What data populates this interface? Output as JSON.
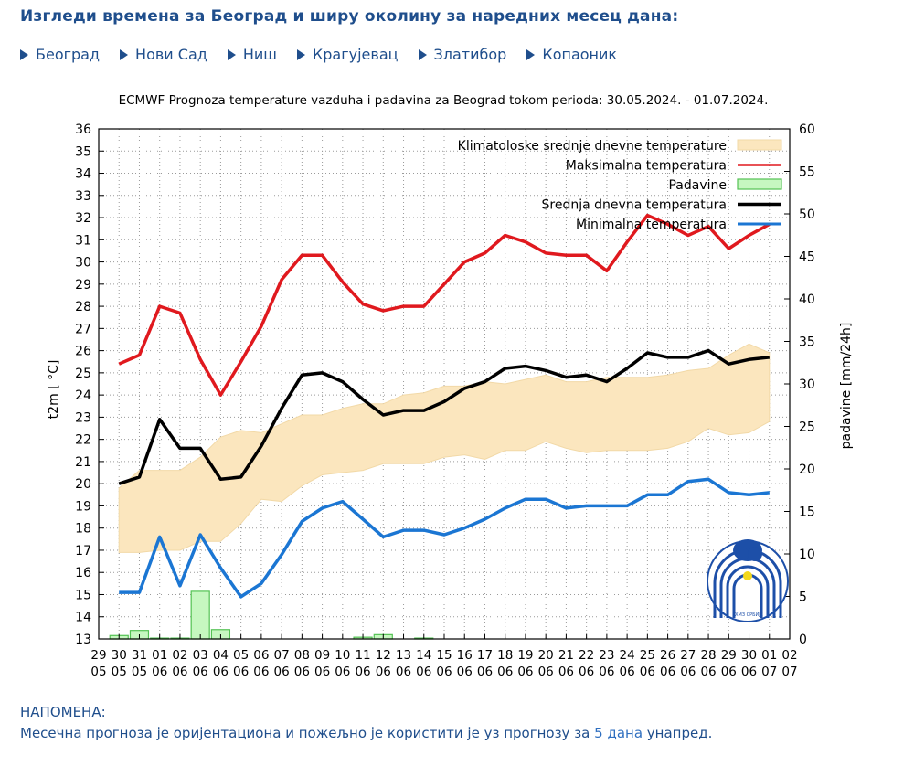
{
  "page": {
    "heading": "Изгледи времена за Београд и ширу околину за наредних месец дана:",
    "cities": [
      "Београд",
      "Нови Сад",
      "Ниш",
      "Крагујевац",
      "Златибор",
      "Копаоник"
    ],
    "note_title": "НАПОМЕНА:",
    "note_prefix": "Месечна прогноза је оријентациона и пожељно је користити је уз прогнозу за ",
    "note_link": "5 дана",
    "note_suffix": " унапред.",
    "logo_caption": "РХМЗ СРБИЈЕ"
  },
  "chart_data": {
    "type": "line",
    "title": "ECMWF Prognoza temperature  vazduha i padavina za Beograd tokom perioda: 30.05.2024. - 01.07.2024.",
    "ylabel": "t2m [ °C]",
    "y2label": "padavine [mm/24h]",
    "ylim": [
      13,
      36
    ],
    "y2lim": [
      0,
      60
    ],
    "grid": true,
    "legend_position": "top-right",
    "x_day": [
      "29",
      "30",
      "31",
      "01",
      "02",
      "03",
      "04",
      "05",
      "06",
      "07",
      "08",
      "09",
      "10",
      "11",
      "12",
      "13",
      "14",
      "15",
      "16",
      "17",
      "18",
      "19",
      "20",
      "21",
      "22",
      "23",
      "24",
      "25",
      "26",
      "27",
      "28",
      "29",
      "30",
      "01",
      "02"
    ],
    "x_month": [
      "05",
      "05",
      "05",
      "06",
      "06",
      "06",
      "06",
      "06",
      "06",
      "06",
      "06",
      "06",
      "06",
      "06",
      "06",
      "06",
      "06",
      "06",
      "06",
      "06",
      "06",
      "06",
      "06",
      "06",
      "06",
      "06",
      "06",
      "06",
      "06",
      "06",
      "06",
      "06",
      "06",
      "07",
      "07"
    ],
    "colors": {
      "max": "#e0191e",
      "mean": "#000000",
      "min": "#1b76d3",
      "band_fill": "#fbe6be",
      "band_stroke": "#f2d9a7",
      "precip_fill": "#c6f7c0",
      "precip_stroke": "#54c254"
    },
    "climatology": {
      "name": "Klimatoloske srednje dnevne temperature",
      "upper": [
        19.8,
        20.6,
        20.6,
        20.6,
        21.2,
        22.1,
        22.4,
        22.3,
        22.7,
        23.1,
        23.1,
        23.4,
        23.6,
        23.6,
        24.0,
        24.1,
        24.4,
        24.4,
        24.6,
        24.5,
        24.7,
        24.9,
        24.6,
        24.6,
        24.8,
        24.8,
        24.8,
        24.9,
        25.1,
        25.2,
        25.8,
        26.3,
        25.9
      ],
      "lower": [
        16.9,
        16.9,
        17.0,
        17.0,
        17.4,
        17.4,
        18.2,
        19.3,
        19.2,
        19.9,
        20.4,
        20.5,
        20.6,
        20.9,
        20.9,
        20.9,
        21.2,
        21.3,
        21.1,
        21.5,
        21.5,
        21.9,
        21.6,
        21.4,
        21.5,
        21.5,
        21.5,
        21.6,
        21.9,
        22.5,
        22.2,
        22.3,
        22.8
      ]
    },
    "series": [
      {
        "name": "Maksimalna temperatura",
        "key": "max",
        "values": [
          25.4,
          25.8,
          28.0,
          27.7,
          25.6,
          24.0,
          25.5,
          27.1,
          29.2,
          30.3,
          30.3,
          29.1,
          28.1,
          27.8,
          28.0,
          28.0,
          29.0,
          30.0,
          30.4,
          31.2,
          30.9,
          30.4,
          30.3,
          30.3,
          29.6,
          30.9,
          32.1,
          31.7,
          31.2,
          31.6,
          30.6,
          31.2,
          31.7
        ]
      },
      {
        "name": "Srednja dnevna temperatura",
        "key": "mean",
        "values": [
          20.0,
          20.3,
          22.9,
          21.6,
          21.6,
          20.2,
          20.3,
          21.7,
          23.4,
          24.9,
          25.0,
          24.6,
          23.8,
          23.1,
          23.3,
          23.3,
          23.7,
          24.3,
          24.6,
          25.2,
          25.3,
          25.1,
          24.8,
          24.9,
          24.6,
          25.2,
          25.9,
          25.7,
          25.7,
          26.0,
          25.4,
          25.6,
          25.7
        ]
      },
      {
        "name": "Minimalna temperatura",
        "key": "min",
        "values": [
          15.1,
          15.1,
          17.6,
          15.4,
          17.7,
          16.2,
          14.9,
          15.5,
          16.8,
          18.3,
          18.9,
          19.2,
          18.4,
          17.6,
          17.9,
          17.9,
          17.7,
          18.0,
          18.4,
          18.9,
          19.3,
          19.3,
          18.9,
          19.0,
          19.0,
          19.0,
          19.5,
          19.5,
          20.1,
          20.2,
          19.6,
          19.5,
          19.6
        ]
      },
      {
        "name": "Padavine",
        "key": "precip",
        "values": [
          0.4,
          1.0,
          0.1,
          0.1,
          5.6,
          1.1,
          0,
          0,
          0,
          0,
          0,
          0,
          0.2,
          0.5,
          0,
          0.1,
          0,
          0,
          0,
          0,
          0,
          0,
          0,
          0,
          0,
          0,
          0,
          0,
          0,
          0,
          0,
          0,
          0
        ]
      }
    ]
  }
}
